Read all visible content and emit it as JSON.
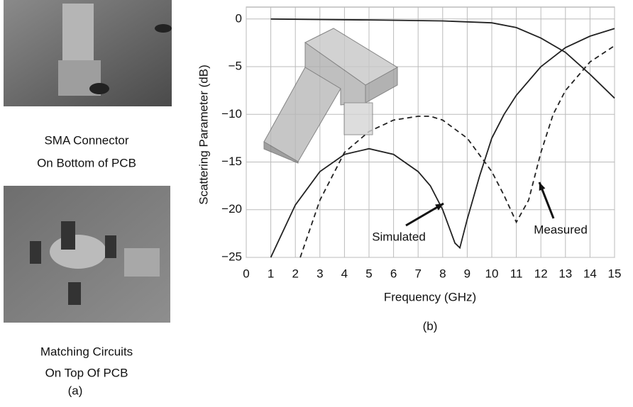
{
  "figure": {
    "captions": [
      "SMA Connector",
      "On Bottom of PCB",
      "Matching Circuits",
      "On Top Of PCB"
    ],
    "panel_label": "(a)"
  },
  "chart_data": {
    "type": "line",
    "panel_label": "(b)",
    "x_label": "Frequency (GHz)",
    "y_label": "Scattering Parameter (dB)",
    "xlim": [
      0,
      15
    ],
    "ylim": [
      -25,
      1.25
    ],
    "xticks": [
      0,
      1,
      2,
      3,
      4,
      5,
      6,
      7,
      8,
      9,
      10,
      11,
      12,
      13,
      14,
      15
    ],
    "yticks": [
      {
        "value": -25,
        "label": "−25"
      },
      {
        "value": -20,
        "label": "−20"
      },
      {
        "value": -15,
        "label": "−15"
      },
      {
        "value": -10,
        "label": "−10"
      },
      {
        "value": -5,
        "label": "−5"
      },
      0
    ],
    "grid": true,
    "annotations": [
      "Simulated",
      "Measured"
    ],
    "series": [
      {
        "color": "#222222",
        "dashed": false,
        "x": [
          1,
          2,
          3,
          4,
          5,
          6,
          7,
          7.5,
          8,
          8.5,
          8.7,
          9,
          9.5,
          10,
          10.5,
          11,
          12,
          13,
          14,
          15
        ],
        "values": [
          -25,
          -19.5,
          -16,
          -14.2,
          -13.6,
          -14.2,
          -16,
          -17.5,
          -20,
          -23.5,
          -24,
          -21,
          -16.5,
          -12.5,
          -10,
          -8,
          -5,
          -3,
          -1.8,
          -1
        ]
      },
      {
        "color": "#222222",
        "dashed": true,
        "x": [
          2.2,
          3,
          4,
          5,
          6,
          7,
          7.5,
          8,
          9,
          10,
          10.5,
          11,
          11.5,
          12,
          12.5,
          13,
          14,
          15
        ],
        "values": [
          -25,
          -19,
          -14,
          -11.8,
          -10.6,
          -10.2,
          -10.2,
          -10.6,
          -12.5,
          -16,
          -18.5,
          -21.3,
          -19,
          -14,
          -10,
          -7.5,
          -4.5,
          -2.8
        ]
      },
      {
        "color": "#222222",
        "dashed": false,
        "x": [
          1,
          5,
          8,
          10,
          11,
          12,
          13,
          14,
          15
        ],
        "values": [
          0,
          -0.1,
          -0.2,
          -0.4,
          -0.9,
          -2,
          -3.5,
          -5.8,
          -8.3
        ]
      }
    ]
  }
}
